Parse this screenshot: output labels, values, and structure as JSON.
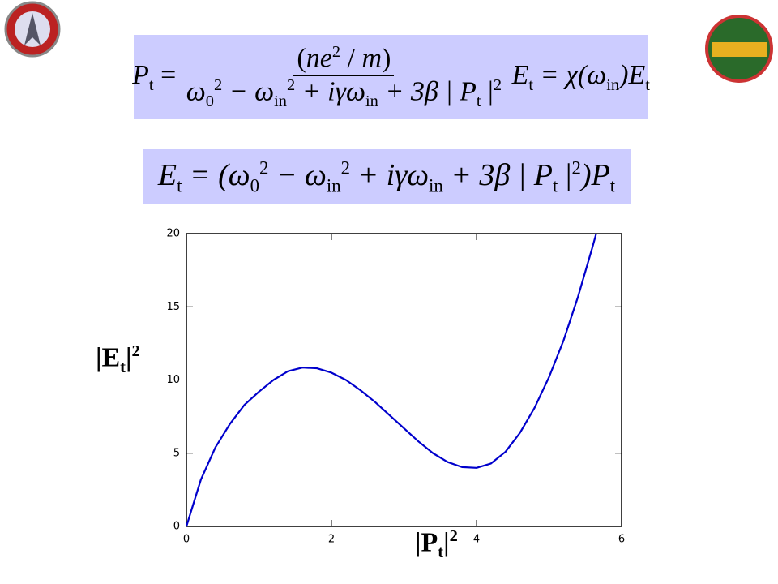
{
  "equations": [
    {
      "lhs": [
        {
          "text": "P",
          "style": "i"
        },
        {
          "text": "t",
          "style": "sub"
        },
        {
          "text": " = ",
          "style": "n"
        }
      ],
      "numerator": [
        {
          "text": "(",
          "style": "n"
        },
        {
          "text": "ne",
          "style": "i"
        },
        {
          "text": "2",
          "style": "sup"
        },
        {
          "text": " / ",
          "style": "n"
        },
        {
          "text": "m",
          "style": "i"
        },
        {
          "text": ")",
          "style": "n"
        }
      ],
      "denominator": [
        {
          "text": "ω",
          "style": "i"
        },
        {
          "text": "0",
          "style": "sub"
        },
        {
          "text": "2",
          "style": "sup"
        },
        {
          "text": " − ω",
          "style": "i"
        },
        {
          "text": "in",
          "style": "sub"
        },
        {
          "text": "2",
          "style": "sup"
        },
        {
          "text": " + iγω",
          "style": "i"
        },
        {
          "text": "in",
          "style": "sub"
        },
        {
          "text": " + 3β | P",
          "style": "i"
        },
        {
          "text": "t",
          "style": "sub"
        },
        {
          "text": " |",
          "style": "n"
        },
        {
          "text": "2",
          "style": "sup"
        }
      ],
      "rhs": [
        {
          "text": " E",
          "style": "i"
        },
        {
          "text": "t",
          "style": "sub"
        },
        {
          "text": " = χ(ω",
          "style": "i"
        },
        {
          "text": "in",
          "style": "sub"
        },
        {
          "text": ")E",
          "style": "i"
        },
        {
          "text": "t",
          "style": "sub"
        }
      ]
    },
    {
      "lhs": [
        {
          "text": "E",
          "style": "i"
        },
        {
          "text": "t",
          "style": "sub"
        },
        {
          "text": " = (ω",
          "style": "i"
        },
        {
          "text": "0",
          "style": "sub"
        },
        {
          "text": "2",
          "style": "sup"
        },
        {
          "text": " − ω",
          "style": "i"
        },
        {
          "text": "in",
          "style": "sub"
        },
        {
          "text": "2",
          "style": "sup"
        },
        {
          "text": " + iγω",
          "style": "i"
        },
        {
          "text": "in",
          "style": "sub"
        },
        {
          "text": " + 3β | P",
          "style": "i"
        },
        {
          "text": "t",
          "style": "sub"
        },
        {
          "text": " |",
          "style": "n"
        },
        {
          "text": "2",
          "style": "sup"
        },
        {
          "text": ")P",
          "style": "i"
        },
        {
          "text": "t",
          "style": "sub"
        }
      ]
    }
  ],
  "chart_data": {
    "type": "line",
    "x": [
      0,
      0.2,
      0.4,
      0.6,
      0.8,
      1.0,
      1.2,
      1.4,
      1.6,
      1.8,
      2.0,
      2.2,
      2.4,
      2.6,
      2.8,
      3.0,
      3.2,
      3.4,
      3.6,
      3.8,
      4.0,
      4.2,
      4.4,
      4.6,
      4.8,
      5.0,
      5.2,
      5.4,
      5.6,
      5.65
    ],
    "series": [
      {
        "color": "#0000cc",
        "values": [
          0,
          3.2,
          5.4,
          7.0,
          8.3,
          9.2,
          10.0,
          10.6,
          10.85,
          10.8,
          10.5,
          10.0,
          9.3,
          8.5,
          7.6,
          6.7,
          5.8,
          5.0,
          4.4,
          4.05,
          4.0,
          4.3,
          5.1,
          6.4,
          8.1,
          10.2,
          12.7,
          15.7,
          19.1,
          20
        ]
      }
    ],
    "xlim": [
      0,
      6
    ],
    "ylim": [
      0,
      20
    ],
    "xticks": [
      0,
      2,
      4,
      6
    ],
    "yticks": [
      0,
      5,
      10,
      15,
      20
    ],
    "xlabel": [
      {
        "text": "|P",
        "style": "n"
      },
      {
        "text": "t",
        "style": "sub"
      },
      {
        "text": "|",
        "style": "n"
      },
      {
        "text": "2",
        "style": "sup"
      }
    ],
    "ylabel": [
      {
        "text": "|E",
        "style": "n"
      },
      {
        "text": "t",
        "style": "sub"
      },
      {
        "text": "|",
        "style": "n"
      },
      {
        "text": "2",
        "style": "sup"
      }
    ]
  }
}
